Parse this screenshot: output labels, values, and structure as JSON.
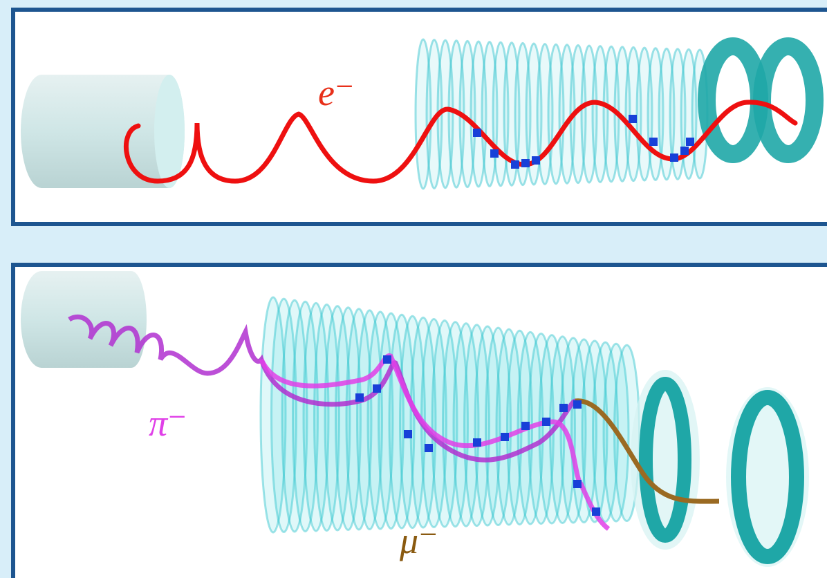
{
  "panels": [
    {
      "particles": [
        {
          "label": "e⁻"
        }
      ]
    },
    {
      "particles": [
        {
          "label": "π⁻"
        },
        {
          "label": "μ⁻"
        }
      ]
    }
  ]
}
